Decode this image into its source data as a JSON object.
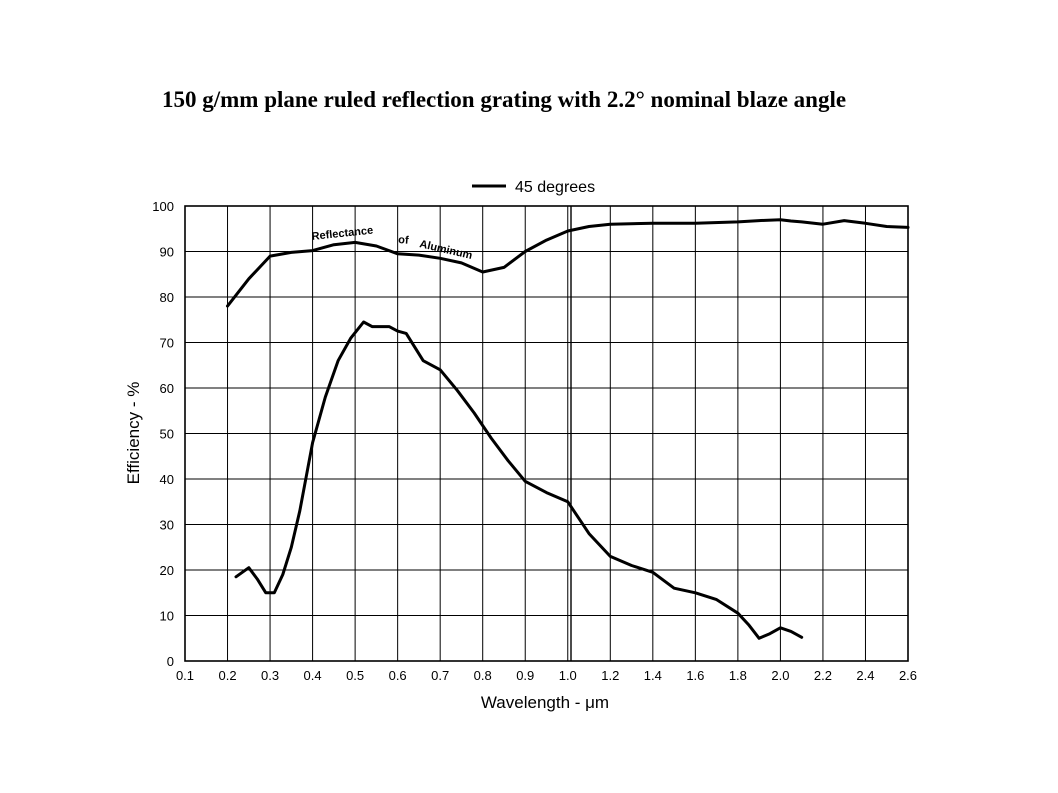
{
  "page": {
    "title": "150 g/mm plane ruled reflection grating with 2.2° nominal blaze angle"
  },
  "chart_data": {
    "type": "line",
    "title": "150 g/mm plane ruled reflection grating with 2.2° nominal blaze angle",
    "xlabel": "Wavelength - μm",
    "ylabel": "Efficiency - %",
    "ylim": [
      0,
      100
    ],
    "y_ticks": [
      0,
      10,
      20,
      30,
      40,
      50,
      60,
      70,
      80,
      90,
      100
    ],
    "x_scale": "piecewise: 0.1–1.0 μm at 0.1 μm per division, 1.0–2.6 μm at 0.2 μm per division",
    "x_ticks": [
      0.1,
      0.2,
      0.3,
      0.4,
      0.5,
      0.6,
      0.7,
      0.8,
      0.9,
      1.0,
      1.2,
      1.4,
      1.6,
      1.8,
      2.0,
      2.2,
      2.4,
      2.6
    ],
    "x_tick_labels": [
      "0.1",
      "0.2",
      "0.3",
      "0.4",
      "0.5",
      "0.6",
      "0.7",
      "0.8",
      "0.9",
      "1.0",
      "1.2",
      "1.4",
      "1.6",
      "1.8",
      "2.0",
      "2.2",
      "2.4",
      "2.6"
    ],
    "grid": true,
    "legend": {
      "position": "top-center",
      "entries": [
        "45 degrees"
      ]
    },
    "series": [
      {
        "name": "Reflectance of Aluminum",
        "label_parts": [
          "Reflectance",
          "of",
          "Aluminum"
        ],
        "color": "#000000",
        "x": [
          0.2,
          0.25,
          0.3,
          0.35,
          0.4,
          0.45,
          0.5,
          0.55,
          0.6,
          0.65,
          0.7,
          0.75,
          0.8,
          0.85,
          0.9,
          0.95,
          1.0,
          1.1,
          1.2,
          1.4,
          1.6,
          1.8,
          1.9,
          2.0,
          2.05,
          2.1,
          2.2,
          2.3,
          2.4,
          2.5,
          2.6
        ],
        "values": [
          78,
          84,
          89,
          89.8,
          90.2,
          91.5,
          92,
          91.2,
          89.5,
          89.2,
          88.5,
          87.5,
          85.5,
          86.5,
          90,
          92.5,
          94.5,
          95.5,
          96,
          96.2,
          96.2,
          96.5,
          96.8,
          97,
          96.7,
          96.5,
          96,
          96.8,
          96.2,
          95.5,
          95.3
        ]
      },
      {
        "name": "45 degrees",
        "color": "#000000",
        "x": [
          0.22,
          0.25,
          0.27,
          0.29,
          0.31,
          0.33,
          0.35,
          0.37,
          0.4,
          0.43,
          0.46,
          0.49,
          0.52,
          0.54,
          0.56,
          0.58,
          0.6,
          0.62,
          0.64,
          0.66,
          0.7,
          0.74,
          0.78,
          0.82,
          0.86,
          0.9,
          0.95,
          1.0,
          1.05,
          1.1,
          1.2,
          1.3,
          1.4,
          1.5,
          1.6,
          1.7,
          1.8,
          1.85,
          1.9,
          1.95,
          2.0,
          2.05,
          2.1
        ],
        "values": [
          18.5,
          20.5,
          18,
          15,
          15,
          19,
          25,
          33,
          48,
          58,
          66,
          71,
          74.5,
          73.5,
          73.5,
          73.5,
          72.5,
          72,
          69,
          66,
          64,
          59.5,
          54.5,
          49,
          44,
          39.5,
          37,
          35,
          31.5,
          28,
          23,
          21,
          19.5,
          16,
          15,
          13.5,
          10.5,
          8,
          5,
          6,
          7.3,
          6.5,
          5.2
        ]
      }
    ]
  }
}
